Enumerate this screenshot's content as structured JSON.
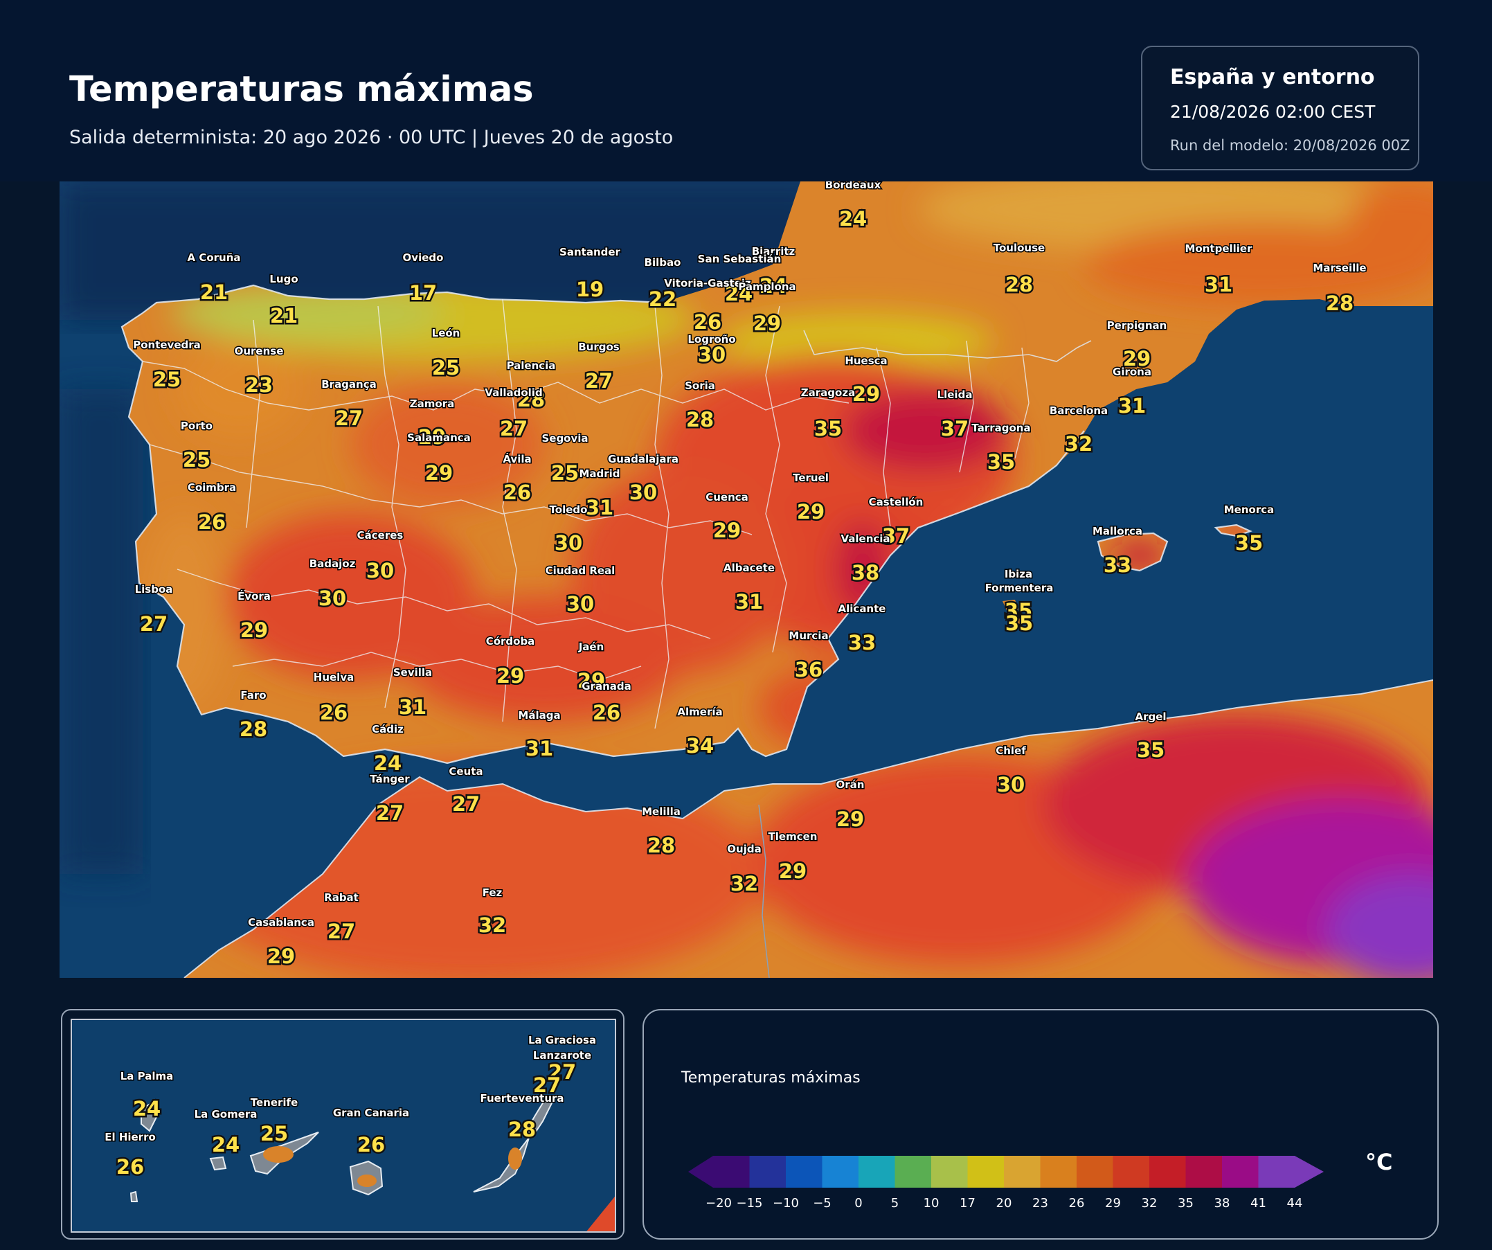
{
  "header": {
    "title": "Temperaturas máximas",
    "subtitle": "Salida determinista: 20 ago 2026 · 00 UTC  |  Jueves 20 de agosto"
  },
  "info": {
    "region": "España y entorno",
    "valid": "21/08/2026  02:00 CEST",
    "run": "Run del modelo: 20/08/2026 00Z"
  },
  "colors": {
    "sea": "#0e3f6b",
    "deep_sea": "#0a2a4f",
    "land_base": "#d9832a",
    "accent_text": "#ffe14a"
  },
  "map": {
    "cities": [
      {
        "name": "Bordeaux",
        "temp": "24"
      },
      {
        "name": "A Coruña",
        "temp": "21"
      },
      {
        "name": "Oviedo",
        "temp": "17"
      },
      {
        "name": "Santander",
        "temp": "19"
      },
      {
        "name": "Bilbao",
        "temp": "22"
      },
      {
        "name": "Biarritz",
        "temp": "24"
      },
      {
        "name": "San Sebastián",
        "temp": "24"
      },
      {
        "name": "Lugo",
        "temp": "21"
      },
      {
        "name": "Vitoria-Gasteiz",
        "temp": "26"
      },
      {
        "name": "Pamplona",
        "temp": "29"
      },
      {
        "name": "Toulouse",
        "temp": "28"
      },
      {
        "name": "Montpellier",
        "temp": "31"
      },
      {
        "name": "Marseille",
        "temp": "28"
      },
      {
        "name": "León",
        "temp": "25"
      },
      {
        "name": "Pontevedra",
        "temp": "25"
      },
      {
        "name": "Ourense",
        "temp": "23"
      },
      {
        "name": "Burgos",
        "temp": "27"
      },
      {
        "name": "Logroño",
        "temp": "30"
      },
      {
        "name": "Perpignan",
        "temp": "29"
      },
      {
        "name": "Palencia",
        "temp": "28"
      },
      {
        "name": "Huesca",
        "temp": "29"
      },
      {
        "name": "Girona",
        "temp": "31"
      },
      {
        "name": "Bragança",
        "temp": "27"
      },
      {
        "name": "Valladolid",
        "temp": "27"
      },
      {
        "name": "Soria",
        "temp": "28"
      },
      {
        "name": "Zaragoza",
        "temp": "35"
      },
      {
        "name": "Lleida",
        "temp": "37"
      },
      {
        "name": "Zamora",
        "temp": "29"
      },
      {
        "name": "Barcelona",
        "temp": "32"
      },
      {
        "name": "Porto",
        "temp": "25"
      },
      {
        "name": "Tarragona",
        "temp": "35"
      },
      {
        "name": "Salamanca",
        "temp": "29"
      },
      {
        "name": "Segovia",
        "temp": "25"
      },
      {
        "name": "Ávila",
        "temp": "26"
      },
      {
        "name": "Guadalajara",
        "temp": "30"
      },
      {
        "name": "Madrid",
        "temp": "31"
      },
      {
        "name": "Teruel",
        "temp": "29"
      },
      {
        "name": "Coimbra",
        "temp": "26"
      },
      {
        "name": "Cuenca",
        "temp": "29"
      },
      {
        "name": "Castellón",
        "temp": "37"
      },
      {
        "name": "Toledo",
        "temp": "30"
      },
      {
        "name": "Menorca",
        "temp": "35"
      },
      {
        "name": "Mallorca",
        "temp": "33"
      },
      {
        "name": "Cáceres",
        "temp": "30"
      },
      {
        "name": "Valencia",
        "temp": "38"
      },
      {
        "name": "Badajoz",
        "temp": "30"
      },
      {
        "name": "Ciudad Real",
        "temp": "30"
      },
      {
        "name": "Albacete",
        "temp": "31"
      },
      {
        "name": "Ibiza",
        "temp": "35"
      },
      {
        "name": "Formentera",
        "temp": "35"
      },
      {
        "name": "Lisboa",
        "temp": "27"
      },
      {
        "name": "Évora",
        "temp": "29"
      },
      {
        "name": "Alicante",
        "temp": "33"
      },
      {
        "name": "Murcia",
        "temp": "36"
      },
      {
        "name": "Córdoba",
        "temp": "29"
      },
      {
        "name": "Jaén",
        "temp": "29"
      },
      {
        "name": "Granada",
        "temp": "26"
      },
      {
        "name": "Huelva",
        "temp": "26"
      },
      {
        "name": "Sevilla",
        "temp": "31"
      },
      {
        "name": "Faro",
        "temp": "28"
      },
      {
        "name": "Almería",
        "temp": "34"
      },
      {
        "name": "Málaga",
        "temp": "31"
      },
      {
        "name": "Argel",
        "temp": "35"
      },
      {
        "name": "Cádiz",
        "temp": "24"
      },
      {
        "name": "Chlef",
        "temp": "30"
      },
      {
        "name": "Ceuta",
        "temp": "27"
      },
      {
        "name": "Tánger",
        "temp": "27"
      },
      {
        "name": "Orán",
        "temp": "29"
      },
      {
        "name": "Melilla",
        "temp": "28"
      },
      {
        "name": "Tlemcen",
        "temp": "29"
      },
      {
        "name": "Oujda",
        "temp": "32"
      },
      {
        "name": "Fez",
        "temp": "32"
      },
      {
        "name": "Rabat",
        "temp": "27"
      },
      {
        "name": "Casablanca",
        "temp": "29"
      }
    ]
  },
  "canarias": {
    "islands": [
      {
        "name": "La Graciosa",
        "temp": "27"
      },
      {
        "name": "Lanzarote",
        "temp": "27"
      },
      {
        "name": "La Palma",
        "temp": "24"
      },
      {
        "name": "Tenerife",
        "temp": "25"
      },
      {
        "name": "Fuerteventura",
        "temp": "28"
      },
      {
        "name": "La Gomera",
        "temp": "24"
      },
      {
        "name": "Gran Canaria",
        "temp": "26"
      },
      {
        "name": "El Hierro",
        "temp": "26"
      }
    ]
  },
  "legend": {
    "title": "Temperaturas máximas",
    "unit": "°C",
    "ticks": [
      "−20",
      "−15",
      "−10",
      "−5",
      "0",
      "5",
      "10",
      "17",
      "20",
      "23",
      "26",
      "29",
      "32",
      "35",
      "38",
      "41",
      "44"
    ],
    "colors": [
      "#3b0b73",
      "#23329a",
      "#0c55b8",
      "#1783d4",
      "#18a5b8",
      "#5aae52",
      "#a8c04a",
      "#d1c017",
      "#d9a431",
      "#d9801e",
      "#d25a1a",
      "#cf3a22",
      "#c41e27",
      "#ad0d46",
      "#9a0c86",
      "#7a3ab8"
    ]
  }
}
